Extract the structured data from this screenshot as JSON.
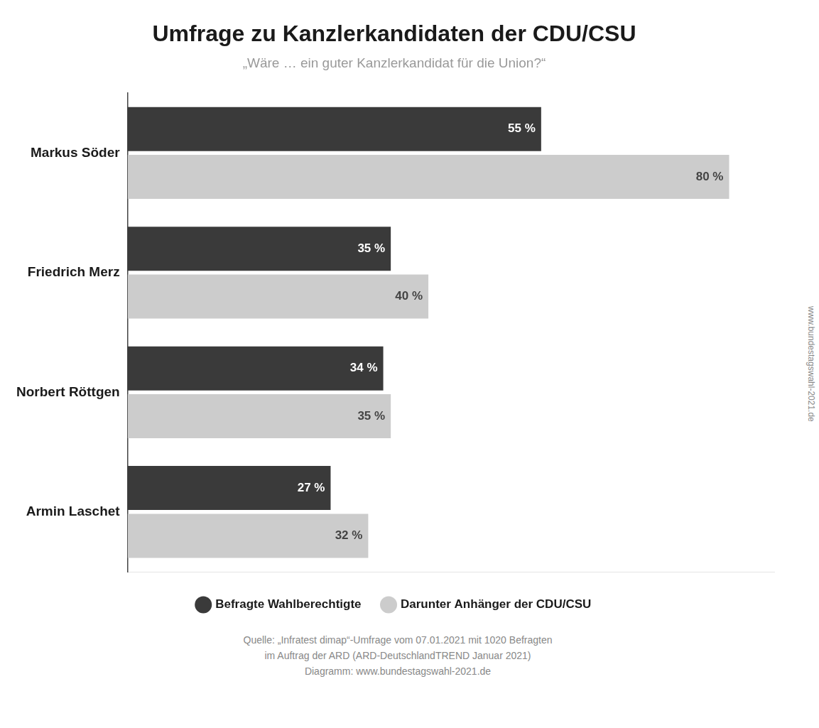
{
  "chart_data": {
    "type": "bar",
    "orientation": "horizontal",
    "title": "Umfrage zu Kanzlerkandidaten der CDU/CSU",
    "subtitle": "„Wäre … ein guter Kanzlerkandidat für die Union?“",
    "categories": [
      "Markus Söder",
      "Friedrich Merz",
      "Norbert Röttgen",
      "Armin Laschet"
    ],
    "series": [
      {
        "name": "Befragte Wahlberechtigte",
        "color": "#3a3a3a",
        "values": [
          55,
          35,
          34,
          27
        ],
        "value_labels": [
          "55 %",
          "35 %",
          "34 %",
          "27 %"
        ]
      },
      {
        "name": "Darunter Anhänger der CDU/CSU",
        "color": "#cccccc",
        "values": [
          80,
          40,
          35,
          32
        ],
        "value_labels": [
          "80 %",
          "40 %",
          "35 %",
          "32 %"
        ]
      }
    ],
    "xlim": [
      0,
      86
    ],
    "data_labels": true,
    "tick_labels": "y",
    "grid": false,
    "legend": "bottom",
    "annotations": [
      "Quelle: „Infratest dimap“-Umfrage vom 07.01.2021 mit 1020 Befragten",
      "im Auftrag der ARD (ARD-DeutschlandTREND Januar 2021)",
      "Diagramm: www.bundestagswahl-2021.de",
      "www.bundestagswahl-2021.de"
    ]
  }
}
